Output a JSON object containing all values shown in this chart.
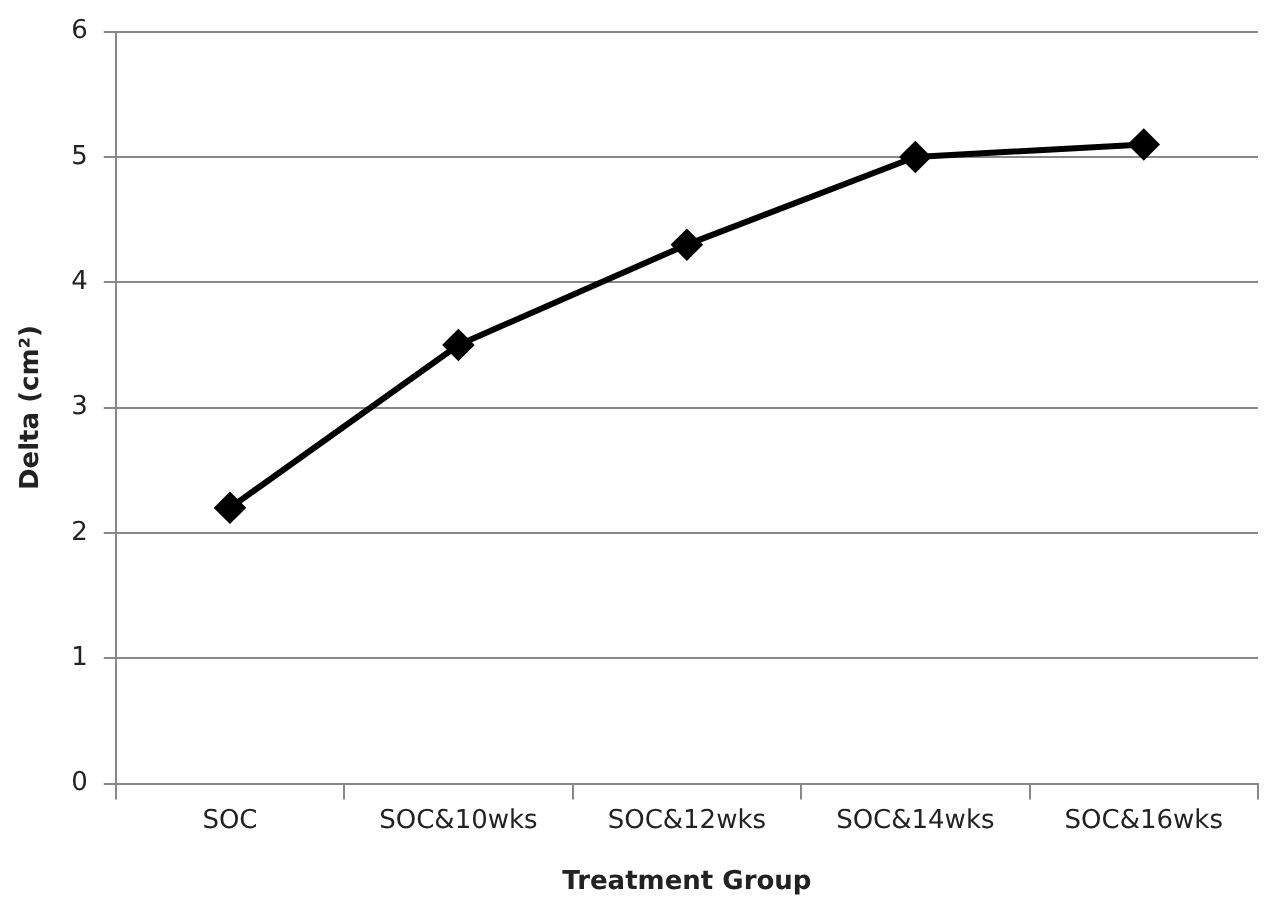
{
  "chart_data": {
    "type": "line",
    "xlabel": "Treatment Group",
    "ylabel": "Delta (cm²)",
    "categories": [
      "SOC",
      "SOC&10wks",
      "SOC&12wks",
      "SOC&14wks",
      "SOC&16wks"
    ],
    "series": [
      {
        "color": "#000000",
        "values": [
          2.2,
          3.5,
          4.3,
          5.0,
          5.1
        ]
      }
    ],
    "ylim": [
      0,
      6
    ],
    "yticks": [
      0,
      1,
      2,
      3,
      4,
      5,
      6
    ],
    "grid": "y",
    "legend": false,
    "marker": "diamond",
    "line_style": "solid"
  }
}
